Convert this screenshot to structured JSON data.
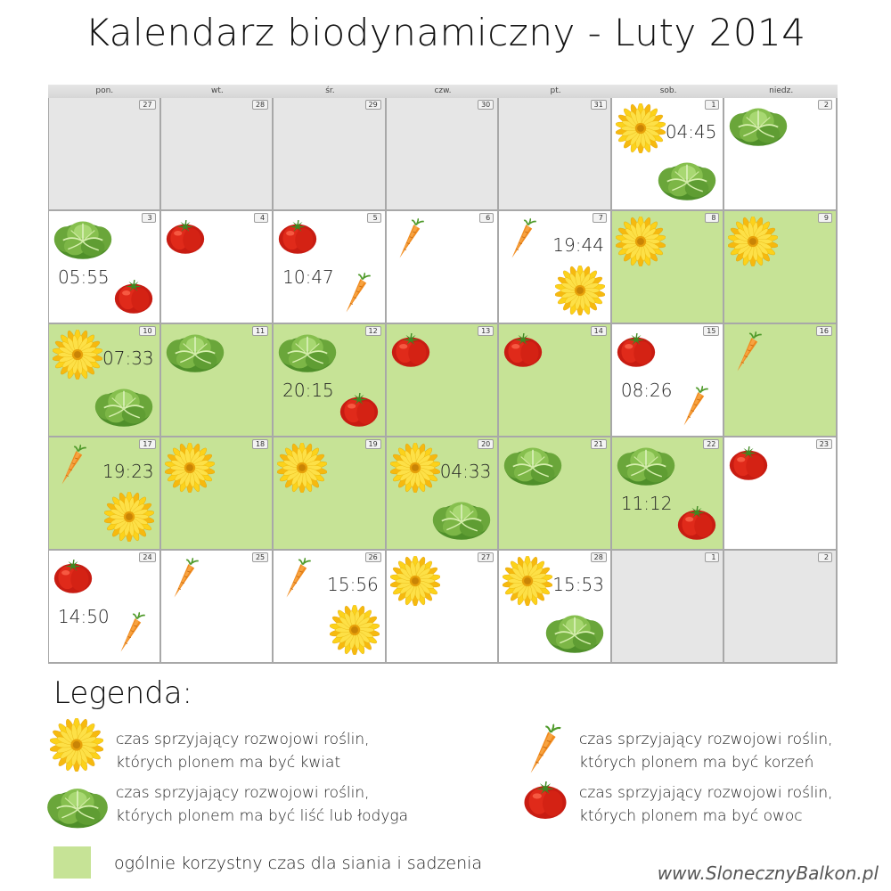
{
  "title": "Kalendarz biodynamiczny - Luty 2014",
  "colors": {
    "favorable": "#c6e396",
    "outside_month": "#e6e6e6",
    "normal": "#ffffff"
  },
  "weekdays": [
    "pon.",
    "wt.",
    "śr.",
    "czw.",
    "pt.",
    "sob.",
    "niedz."
  ],
  "weeks": [
    [
      {
        "day": "27",
        "bg": "gray"
      },
      {
        "day": "28",
        "bg": "gray"
      },
      {
        "day": "29",
        "bg": "gray"
      },
      {
        "day": "30",
        "bg": "gray"
      },
      {
        "day": "31",
        "bg": "gray"
      },
      {
        "day": "1",
        "bg": "white",
        "time": "04:45",
        "before": "flower",
        "after": "leaf"
      },
      {
        "day": "2",
        "bg": "white",
        "before": "leaf"
      }
    ],
    [
      {
        "day": "3",
        "bg": "white",
        "time": "05:55",
        "before": "leaf",
        "after": "fruit"
      },
      {
        "day": "4",
        "bg": "white",
        "before": "fruit"
      },
      {
        "day": "5",
        "bg": "white",
        "time": "10:47",
        "before": "fruit",
        "after": "root"
      },
      {
        "day": "6",
        "bg": "white",
        "before": "root"
      },
      {
        "day": "7",
        "bg": "white",
        "time": "19:44",
        "before": "root",
        "after": "flower"
      },
      {
        "day": "8",
        "bg": "green",
        "before": "flower"
      },
      {
        "day": "9",
        "bg": "green",
        "before": "flower"
      }
    ],
    [
      {
        "day": "10",
        "bg": "green",
        "time": "07:33",
        "before": "flower",
        "after": "leaf"
      },
      {
        "day": "11",
        "bg": "green",
        "before": "leaf"
      },
      {
        "day": "12",
        "bg": "green",
        "time": "20:15",
        "before": "leaf",
        "after": "fruit"
      },
      {
        "day": "13",
        "bg": "green",
        "before": "fruit"
      },
      {
        "day": "14",
        "bg": "green",
        "before": "fruit"
      },
      {
        "day": "15",
        "bg": "white",
        "time": "08:26",
        "before": "fruit",
        "after": "root"
      },
      {
        "day": "16",
        "bg": "green",
        "before": "root"
      }
    ],
    [
      {
        "day": "17",
        "bg": "green",
        "time": "19:23",
        "before": "root",
        "after": "flower"
      },
      {
        "day": "18",
        "bg": "green",
        "before": "flower"
      },
      {
        "day": "19",
        "bg": "green",
        "before": "flower"
      },
      {
        "day": "20",
        "bg": "green",
        "time": "04:33",
        "before": "flower",
        "after": "leaf"
      },
      {
        "day": "21",
        "bg": "green",
        "before": "leaf"
      },
      {
        "day": "22",
        "bg": "green",
        "time": "11:12",
        "before": "leaf",
        "after": "fruit"
      },
      {
        "day": "23",
        "bg": "white",
        "before": "fruit"
      }
    ],
    [
      {
        "day": "24",
        "bg": "white",
        "time": "14:50",
        "before": "fruit",
        "after": "root"
      },
      {
        "day": "25",
        "bg": "white",
        "before": "root"
      },
      {
        "day": "26",
        "bg": "white",
        "time": "15:56",
        "before": "root",
        "after": "flower"
      },
      {
        "day": "27",
        "bg": "white",
        "before": "flower"
      },
      {
        "day": "28",
        "bg": "white",
        "time": "15:53",
        "before": "flower",
        "after": "leaf"
      },
      {
        "day": "1",
        "bg": "gray"
      },
      {
        "day": "2",
        "bg": "gray"
      }
    ]
  ],
  "legend": {
    "title": "Legenda:",
    "flower": {
      "line1": "czas sprzyjający rozwojowi roślin,",
      "line2": "których plonem ma być kwiat",
      "icon": "flower-icon"
    },
    "leaf": {
      "line1": "czas sprzyjający rozwojowi roślin,",
      "line2": "których plonem ma być liść lub łodyga",
      "icon": "lettuce-icon"
    },
    "root": {
      "line1": "czas sprzyjający rozwojowi roślin,",
      "line2": "których plonem ma być korzeń",
      "icon": "carrot-icon"
    },
    "fruit": {
      "line1": "czas sprzyjający rozwojowi roślin,",
      "line2": "których plonem ma być owoc",
      "icon": "tomato-icon"
    },
    "general": "ogólnie korzystny czas dla siania i sadzenia"
  },
  "website": "www.SlonecznyBalkon.pl"
}
